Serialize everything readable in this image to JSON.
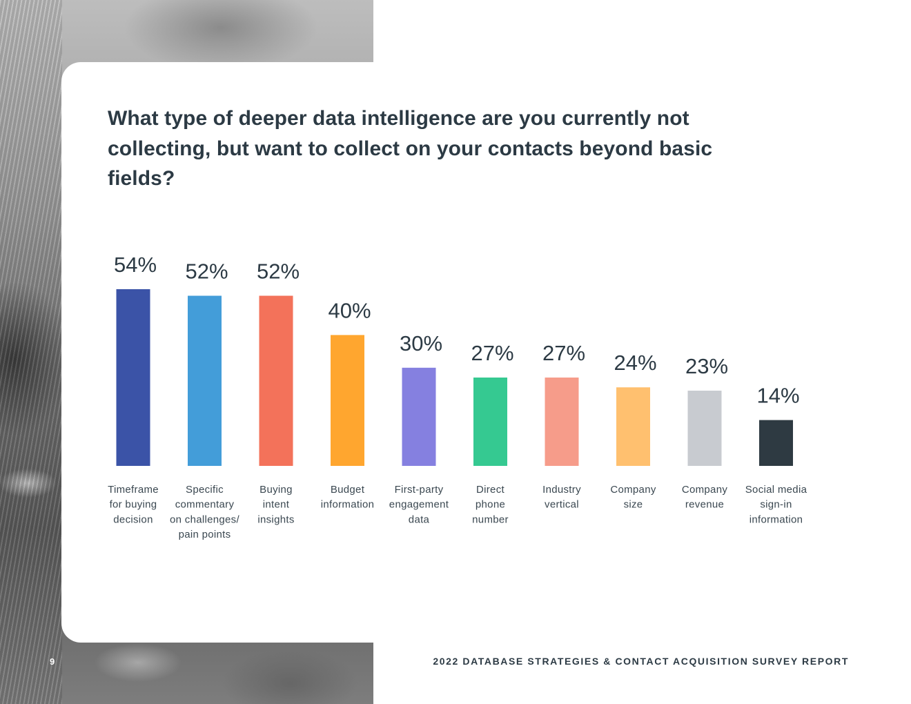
{
  "page": {
    "page_number": "9",
    "report_title": "2022 DATABASE STRATEGIES & CONTACT ACQUISITION SURVEY REPORT"
  },
  "chart_data": {
    "type": "bar",
    "title": "What type of deeper data intelligence are you currently not collecting, but want to collect on your contacts beyond basic fields?",
    "xlabel": "",
    "ylabel": "",
    "ylim": [
      0,
      100
    ],
    "grid": false,
    "legend": "none",
    "categories": [
      [
        "Timeframe",
        "for buying",
        "decision"
      ],
      [
        "Specific",
        "commentary",
        "on challenges/",
        "pain points"
      ],
      [
        "Buying",
        "intent",
        "insights"
      ],
      [
        "Budget",
        "information"
      ],
      [
        "First-party",
        "engagement",
        "data"
      ],
      [
        "Direct",
        "phone",
        "number"
      ],
      [
        "Industry",
        "vertical"
      ],
      [
        "Company",
        "size"
      ],
      [
        "Company",
        "revenue"
      ],
      [
        "Social media",
        "sign-in",
        "information"
      ]
    ],
    "values": [
      54,
      52,
      52,
      40,
      30,
      27,
      27,
      24,
      23,
      14
    ],
    "value_labels": [
      "54%",
      "52%",
      "52%",
      "40%",
      "30%",
      "27%",
      "27%",
      "24%",
      "23%",
      "14%"
    ],
    "colors": [
      "#3b53a7",
      "#439dd9",
      "#f3725a",
      "#ffa62f",
      "#8580e0",
      "#35c991",
      "#f69c8a",
      "#ffc06f",
      "#c8cbd0",
      "#2e3a42"
    ]
  }
}
